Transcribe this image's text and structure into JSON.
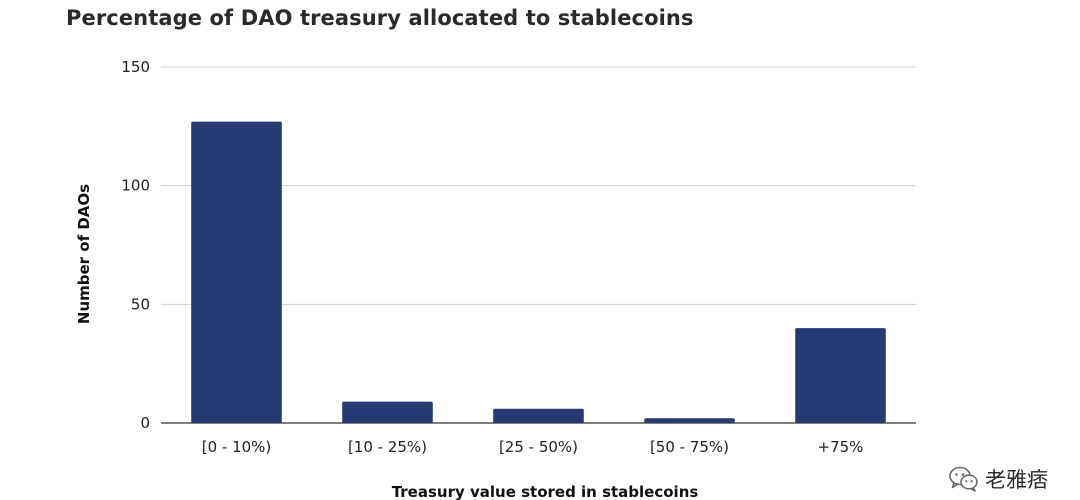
{
  "colors": {
    "bar": "#283a73",
    "grid": "#d0d0d0",
    "background": "#ffffff"
  },
  "chart_data": {
    "type": "bar",
    "title": "Percentage of DAO treasury allocated to stablecoins",
    "xlabel": "Treasury value stored in stablecoins",
    "ylabel": "Number of DAOs",
    "categories": [
      "[0 - 10%)",
      "[10 - 25%)",
      "[25 - 50%)",
      "[50 - 75%)",
      "+75%"
    ],
    "values": [
      127,
      9,
      6,
      2,
      40
    ],
    "ylim": [
      0,
      150
    ],
    "yticks": [
      0,
      50,
      100,
      150
    ],
    "grid": true,
    "legend": "none"
  },
  "watermark": {
    "icon": "wechat-icon",
    "text": "老雅痞"
  }
}
